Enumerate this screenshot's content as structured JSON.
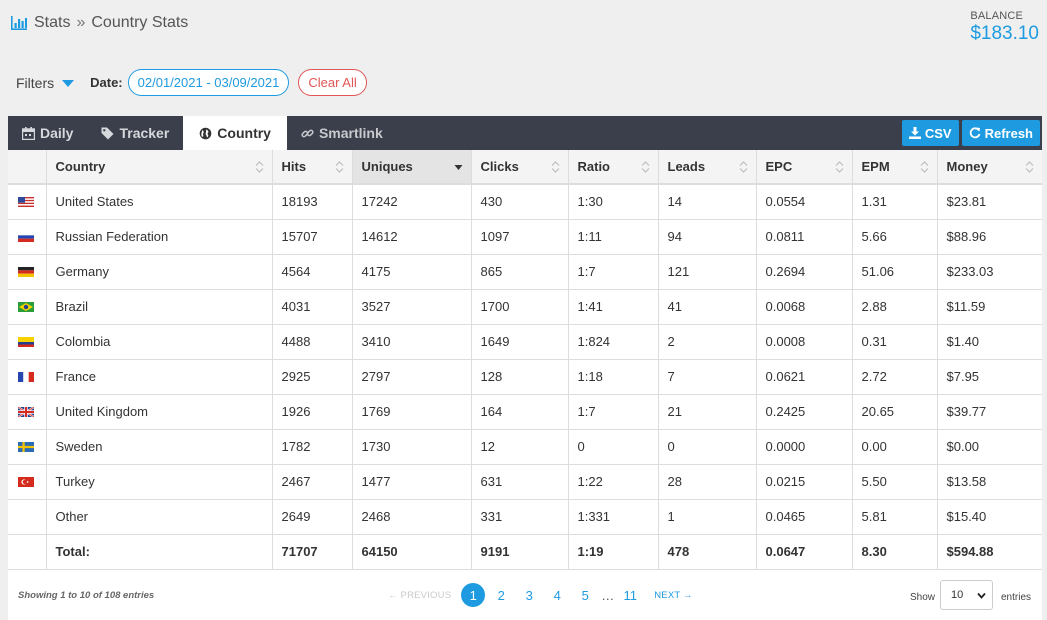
{
  "breadcrumb": {
    "root": "Stats",
    "separator": "»",
    "current": "Country Stats"
  },
  "balance": {
    "label": "BALANCE",
    "value": "$183.10"
  },
  "filters": {
    "label": "Filters",
    "date_label": "Date:",
    "date_range": "02/01/2021 - 03/09/2021",
    "clear_label": "Clear All"
  },
  "tabs": [
    {
      "label": "Daily",
      "icon": "calendar-icon"
    },
    {
      "label": "Tracker",
      "icon": "tag-icon"
    },
    {
      "label": "Country",
      "icon": "globe-icon",
      "active": true
    },
    {
      "label": "Smartlink",
      "icon": "link-icon"
    }
  ],
  "actions": {
    "csv_label": "CSV",
    "refresh_label": "Refresh"
  },
  "columns": [
    "",
    "Country",
    "Hits",
    "Uniques",
    "Clicks",
    "Ratio",
    "Leads",
    "EPC",
    "EPM",
    "Money"
  ],
  "sorted_column": "Uniques",
  "rows": [
    {
      "flag": "us",
      "cells": [
        "United States",
        "18193",
        "17242",
        "430",
        "1:30",
        "14",
        "0.0554",
        "1.31",
        "$23.81"
      ]
    },
    {
      "flag": "ru",
      "cells": [
        "Russian Federation",
        "15707",
        "14612",
        "1097",
        "1:11",
        "94",
        "0.0811",
        "5.66",
        "$88.96"
      ]
    },
    {
      "flag": "de",
      "cells": [
        "Germany",
        "4564",
        "4175",
        "865",
        "1:7",
        "121",
        "0.2694",
        "51.06",
        "$233.03"
      ]
    },
    {
      "flag": "br",
      "cells": [
        "Brazil",
        "4031",
        "3527",
        "1700",
        "1:41",
        "41",
        "0.0068",
        "2.88",
        "$11.59"
      ]
    },
    {
      "flag": "co",
      "cells": [
        "Colombia",
        "4488",
        "3410",
        "1649",
        "1:824",
        "2",
        "0.0008",
        "0.31",
        "$1.40"
      ]
    },
    {
      "flag": "fr",
      "cells": [
        "France",
        "2925",
        "2797",
        "128",
        "1:18",
        "7",
        "0.0621",
        "2.72",
        "$7.95"
      ]
    },
    {
      "flag": "gb",
      "cells": [
        "United Kingdom",
        "1926",
        "1769",
        "164",
        "1:7",
        "21",
        "0.2425",
        "20.65",
        "$39.77"
      ]
    },
    {
      "flag": "se",
      "cells": [
        "Sweden",
        "1782",
        "1730",
        "12",
        "0",
        "0",
        "0.0000",
        "0.00",
        "$0.00"
      ]
    },
    {
      "flag": "tr",
      "cells": [
        "Turkey",
        "2467",
        "1477",
        "631",
        "1:22",
        "28",
        "0.0215",
        "5.50",
        "$13.58"
      ]
    },
    {
      "flag": "",
      "cells": [
        "Other",
        "2649",
        "2468",
        "331",
        "1:331",
        "1",
        "0.0465",
        "5.81",
        "$15.40"
      ]
    }
  ],
  "total": [
    "Total:",
    "71707",
    "64150",
    "9191",
    "1:19",
    "478",
    "0.0647",
    "8.30",
    "$594.88"
  ],
  "footer": {
    "info": "Showing 1 to 10 of 108 entries",
    "prev": "← PREVIOUS",
    "pages": [
      "1",
      "2",
      "3",
      "4",
      "5"
    ],
    "dots": "…",
    "last_page": "11",
    "next": "NEXT →",
    "show_label": "Show",
    "page_size": "10",
    "entries_label": "entries"
  },
  "colors": {
    "accent": "#1e9be0",
    "danger": "#e05555",
    "tabbar": "#3a3f4b"
  }
}
